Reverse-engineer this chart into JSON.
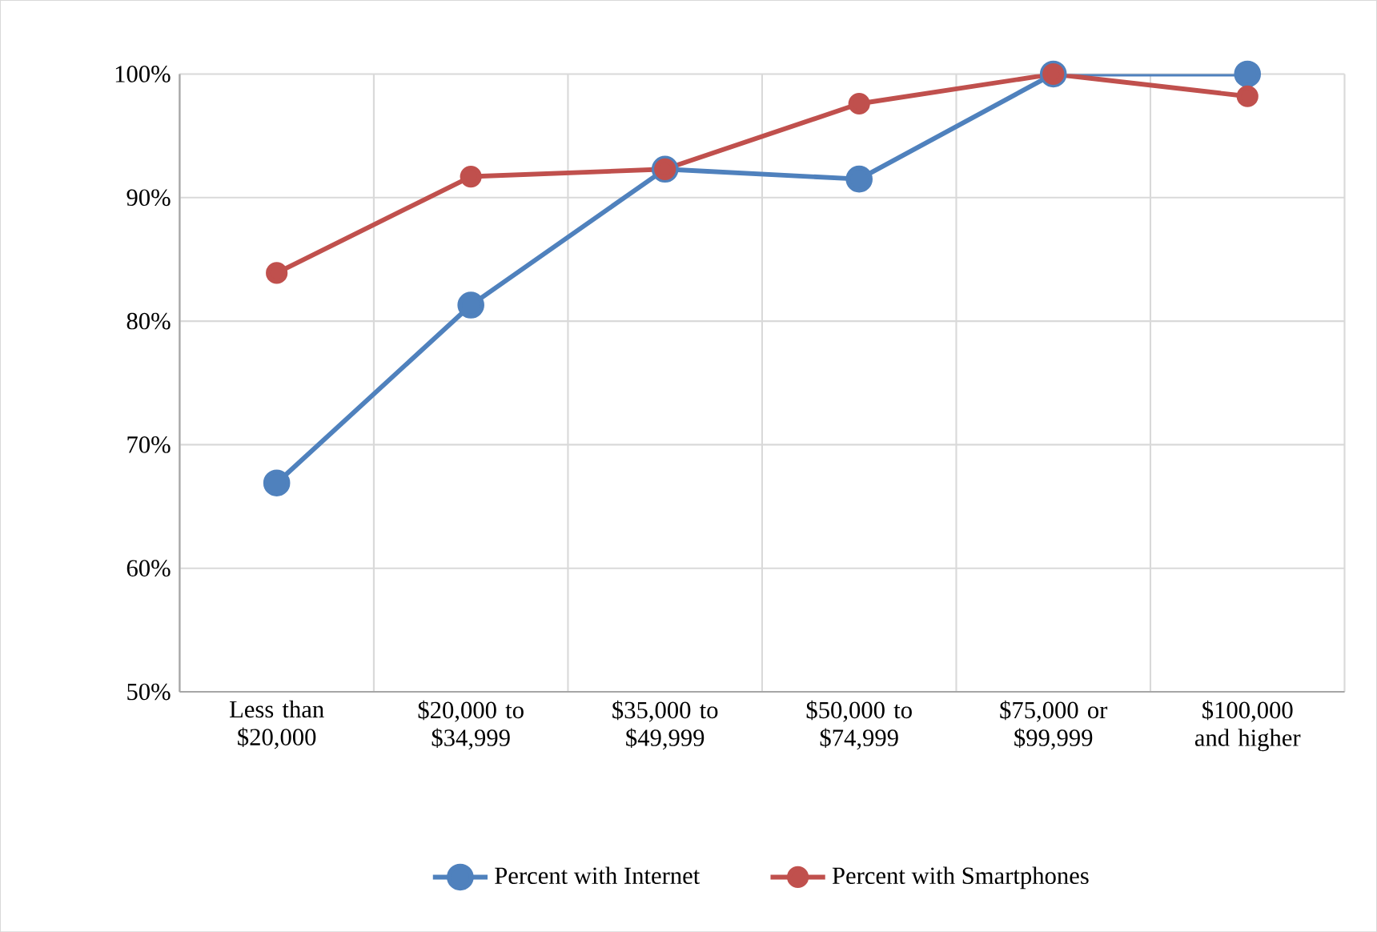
{
  "chart_data": {
    "type": "line",
    "categories": [
      "Less than $20,000",
      "$20,000 to $34,999",
      "$35,000 to $49,999",
      "$50,000 to $74,999",
      "$75,000 or $99,999",
      "$100,000 and higher"
    ],
    "series": [
      {
        "name": "Percent with Internet",
        "color": "#4f81bd",
        "values": [
          66.9,
          81.3,
          92.3,
          91.5,
          100,
          100
        ]
      },
      {
        "name": "Percent with Smartphones",
        "color": "#c0504d",
        "values": [
          83.9,
          91.7,
          92.3,
          97.6,
          100,
          98.2
        ]
      }
    ],
    "ylim": [
      50,
      100
    ],
    "yticks": [
      {
        "value": 50,
        "label": "50%"
      },
      {
        "value": 60,
        "label": "60%"
      },
      {
        "value": 70,
        "label": "70%"
      },
      {
        "value": 80,
        "label": "80%"
      },
      {
        "value": 90,
        "label": "90%"
      },
      {
        "value": 100,
        "label": "100%"
      }
    ],
    "grid": true,
    "legend": "bottom",
    "marker": "circle",
    "line_style": "solid"
  }
}
